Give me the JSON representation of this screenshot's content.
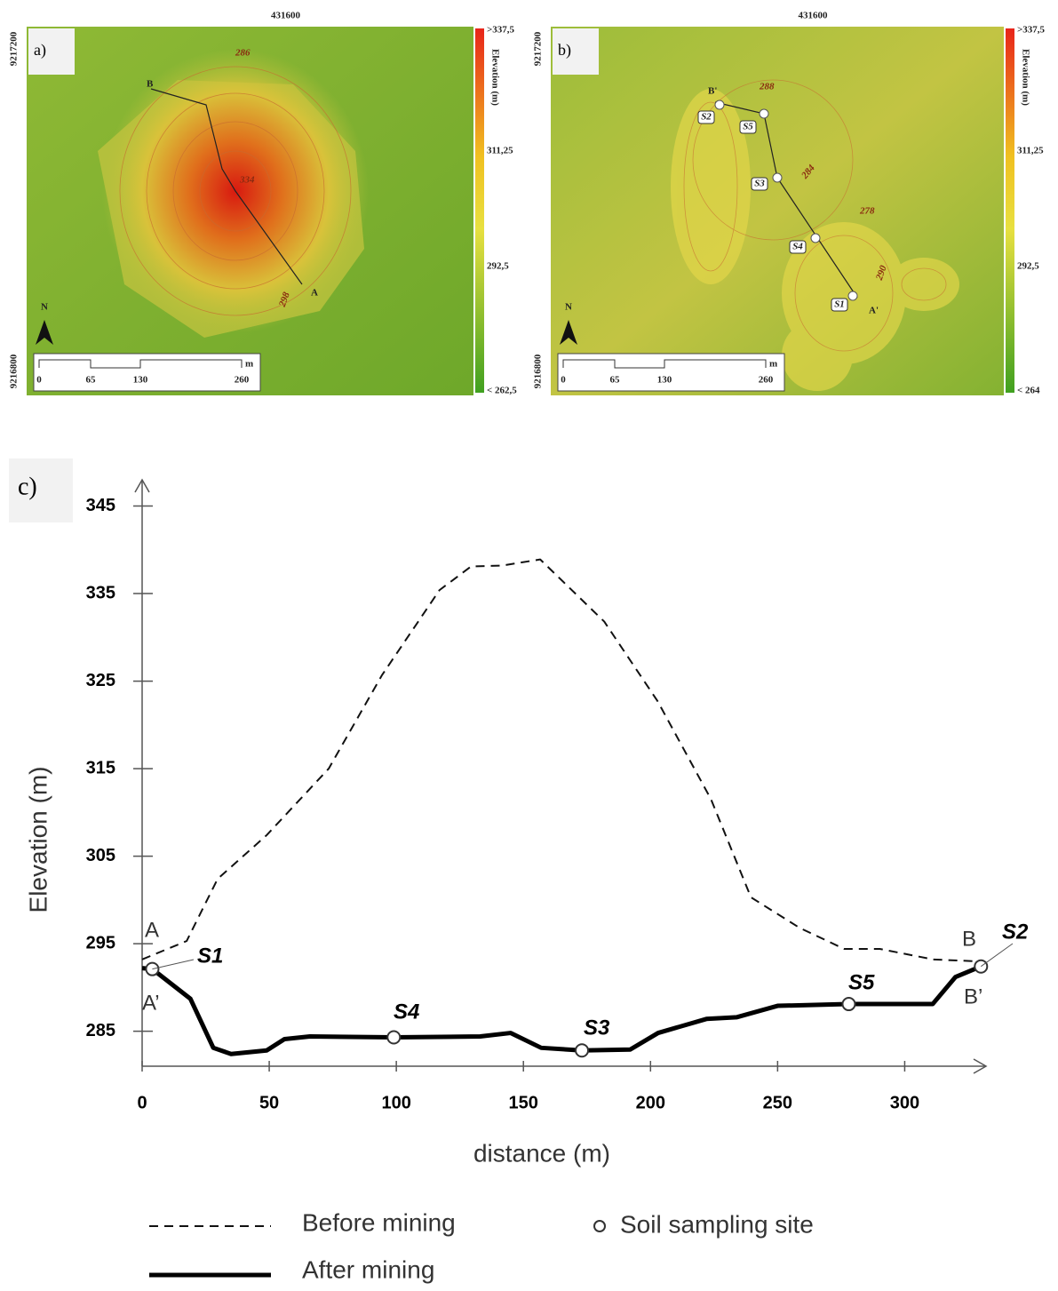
{
  "maps": [
    {
      "label": "a)",
      "easting": "431600",
      "northing_top": "9217200",
      "northing_bottom": "9216800",
      "colorbar": {
        "title": "Elevation (m)",
        "labels": [
          ">337,5",
          "311,25",
          "292,5",
          "< 262,5"
        ]
      },
      "scale": {
        "labels": [
          "0",
          "65",
          "130",
          "260"
        ],
        "unit": "m"
      },
      "north": "N",
      "points": [
        "B",
        "A"
      ],
      "contours": [
        "286",
        "298",
        "334"
      ]
    },
    {
      "label": "b)",
      "easting": "431600",
      "northing_top": "9217200",
      "northing_bottom": "9216800",
      "colorbar": {
        "title": "Elevation (m)",
        "labels": [
          ">337,5",
          "311,25",
          "292,5",
          "< 264"
        ]
      },
      "scale": {
        "labels": [
          "0",
          "65",
          "130",
          "260"
        ],
        "unit": "m"
      },
      "north": "N",
      "points": [
        "B'",
        "A'"
      ],
      "sites": [
        "S1",
        "S2",
        "S3",
        "S4",
        "S5"
      ],
      "contours": [
        "288",
        "284",
        "278",
        "290"
      ]
    }
  ],
  "chart_data": {
    "type": "line",
    "panel_label": "c)",
    "x_label": "distance (m)",
    "y_label": "Elevation (m)",
    "xlim": [
      0,
      332
    ],
    "ylim": [
      281,
      348
    ],
    "xticks": [
      0,
      50,
      100,
      150,
      200,
      250,
      300
    ],
    "yticks": [
      285,
      295,
      305,
      315,
      325,
      335,
      345
    ],
    "series": [
      {
        "name": "Before mining",
        "style": "dashed",
        "color": "#111111",
        "x": [
          0,
          17.5,
          29.7,
          49,
          73.4,
          94.4,
          117,
          129.4,
          141.6,
          156.6,
          181.8,
          202.8,
          223.8,
          239.5,
          258.7,
          276.2,
          290.2,
          311.2,
          327
        ],
        "values": [
          293.2,
          295.3,
          302.4,
          307.4,
          315,
          325.7,
          335.4,
          338.1,
          338.2,
          338.9,
          331.8,
          322.7,
          311.5,
          300.3,
          296.8,
          294.4,
          294.4,
          293.2,
          293
        ]
      },
      {
        "name": "After mining",
        "style": "solid",
        "color": "#000000",
        "x": [
          0,
          4,
          19,
          28,
          35,
          49,
          56,
          66,
          99,
          133,
          145,
          157,
          173,
          192,
          203,
          222,
          234,
          250,
          278,
          311,
          320,
          330
        ],
        "values": [
          292.2,
          292.1,
          288.7,
          283.1,
          282.4,
          282.8,
          284.1,
          284.4,
          284.3,
          284.4,
          284.8,
          283.1,
          282.8,
          282.9,
          284.8,
          286.4,
          286.6,
          287.9,
          288.1,
          288.1,
          291.2,
          292.4
        ]
      },
      {
        "name": "Soil sampling site",
        "style": "marker",
        "color": "#333333",
        "x": [
          4,
          99,
          173,
          278,
          330
        ],
        "values": [
          292.1,
          284.3,
          282.8,
          288.1,
          292.4
        ],
        "labels": [
          "S1",
          "S4",
          "S3",
          "S5",
          "S2"
        ]
      }
    ],
    "annotations": [
      "A",
      "A’",
      "B",
      "B’"
    ]
  }
}
